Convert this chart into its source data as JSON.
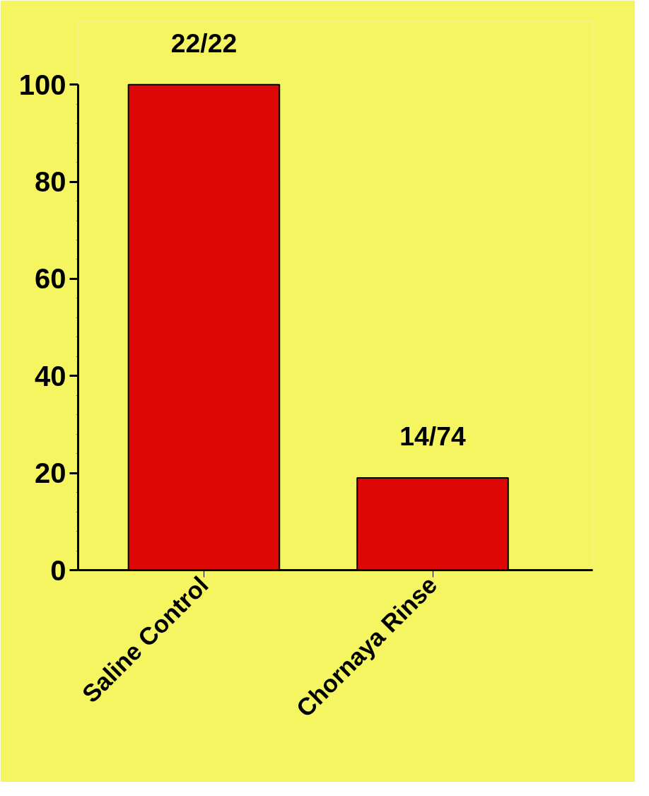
{
  "chart_data": {
    "type": "bar",
    "categories": [
      "Saline Control",
      "Chornaya Rinse"
    ],
    "values": [
      100,
      19
    ],
    "color": "#dd0806",
    "ylim": [
      0,
      100
    ],
    "yticks": [
      0,
      20,
      40,
      60,
      80,
      100
    ],
    "grid": false,
    "annotations": [
      {
        "text": "22/22",
        "x": "Saline Control",
        "y": 100
      },
      {
        "text": "14/74",
        "x": "Chornaya Rinse",
        "y": 19
      }
    ]
  }
}
